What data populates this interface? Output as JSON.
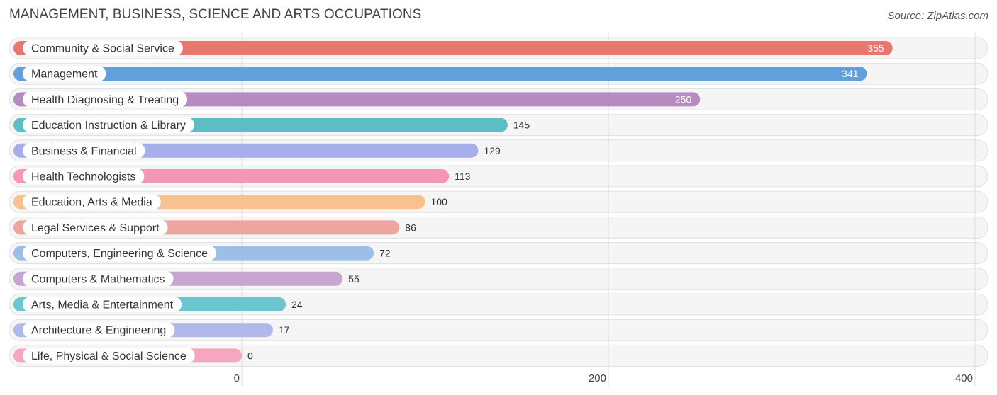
{
  "title": "MANAGEMENT, BUSINESS, SCIENCE AND ARTS OCCUPATIONS",
  "source": "Source: ZipAtlas.com",
  "chart_data": {
    "type": "bar",
    "orientation": "horizontal",
    "title": "MANAGEMENT, BUSINESS, SCIENCE AND ARTS OCCUPATIONS",
    "xlabel": "",
    "ylabel": "",
    "xlim": [
      0,
      400
    ],
    "xticks": [
      0,
      200,
      400
    ],
    "grid": true,
    "categories": [
      "Community & Social Service",
      "Management",
      "Health Diagnosing & Treating",
      "Education Instruction & Library",
      "Business & Financial",
      "Health Technologists",
      "Education, Arts & Media",
      "Legal Services & Support",
      "Computers, Engineering & Science",
      "Computers & Mathematics",
      "Arts, Media & Entertainment",
      "Architecture & Engineering",
      "Life, Physical & Social Science"
    ],
    "values": [
      355,
      341,
      250,
      145,
      129,
      113,
      100,
      86,
      72,
      55,
      24,
      17,
      0
    ],
    "colors": [
      "#e8776f",
      "#62a0dc",
      "#b68cc0",
      "#5bbdc6",
      "#a5aee8",
      "#f596b4",
      "#f8c28e",
      "#eea5a0",
      "#9cbfe8",
      "#c6a6cf",
      "#6cc6d0",
      "#b1b8ea",
      "#f6a6c1"
    ]
  }
}
